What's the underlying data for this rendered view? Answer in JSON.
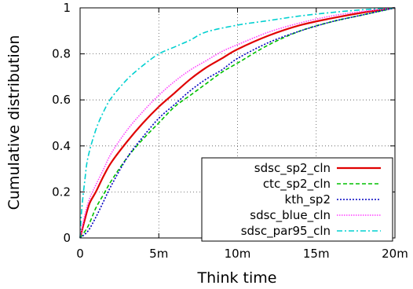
{
  "chart_data": {
    "type": "line",
    "title": "",
    "xlabel": "Think time",
    "ylabel": "Cumulative distribution",
    "xlim": [
      0,
      20
    ],
    "ylim": [
      0,
      1
    ],
    "x_ticks": [
      {
        "value": 0,
        "label": "0"
      },
      {
        "value": 5,
        "label": "5m"
      },
      {
        "value": 10,
        "label": "10m"
      },
      {
        "value": 15,
        "label": "15m"
      },
      {
        "value": 20,
        "label": "20m"
      }
    ],
    "y_ticks": [
      {
        "value": 0,
        "label": "0"
      },
      {
        "value": 0.2,
        "label": "0.2"
      },
      {
        "value": 0.4,
        "label": "0.4"
      },
      {
        "value": 0.6,
        "label": "0.6"
      },
      {
        "value": 0.8,
        "label": "0.8"
      },
      {
        "value": 1,
        "label": "1"
      }
    ],
    "grid": true,
    "legend_position": "bottom-right",
    "series": [
      {
        "name": "sdsc_sp2_cln",
        "color": "#e00000",
        "dash": "solid",
        "x": [
          0,
          0.3,
          0.6,
          1,
          1.5,
          2,
          3,
          4,
          5,
          6,
          7,
          8,
          9,
          10,
          12,
          14,
          16,
          18,
          20
        ],
        "y": [
          0,
          0.08,
          0.15,
          0.2,
          0.27,
          0.33,
          0.42,
          0.5,
          0.57,
          0.63,
          0.69,
          0.74,
          0.78,
          0.82,
          0.88,
          0.925,
          0.955,
          0.98,
          1.0
        ]
      },
      {
        "name": "ctc_sp2_cln",
        "color": "#00c000",
        "dash": "5 3",
        "x": [
          0,
          0.5,
          1,
          1.5,
          2,
          3,
          4,
          5,
          6,
          7,
          8,
          9,
          10,
          12,
          14,
          16,
          18,
          20
        ],
        "y": [
          0,
          0.05,
          0.13,
          0.19,
          0.25,
          0.35,
          0.43,
          0.5,
          0.57,
          0.62,
          0.67,
          0.72,
          0.76,
          0.84,
          0.9,
          0.94,
          0.97,
          1.0
        ]
      },
      {
        "name": "kth_sp2",
        "color": "#0000c0",
        "dash": "2 2",
        "x": [
          0,
          0.5,
          1,
          1.5,
          2,
          3,
          4,
          5,
          6,
          7,
          8,
          9,
          10,
          12,
          14,
          16,
          18,
          20
        ],
        "y": [
          0,
          0.03,
          0.09,
          0.16,
          0.23,
          0.35,
          0.44,
          0.52,
          0.58,
          0.64,
          0.69,
          0.73,
          0.78,
          0.85,
          0.9,
          0.94,
          0.97,
          1.0
        ]
      },
      {
        "name": "sdsc_blue_cln",
        "color": "#ff40ff",
        "dash": "1.5 1.5",
        "x": [
          0,
          0.3,
          0.6,
          1,
          1.5,
          2,
          3,
          4,
          5,
          6,
          7,
          8,
          9,
          10,
          12,
          14,
          16,
          18,
          20
        ],
        "y": [
          0,
          0.1,
          0.17,
          0.23,
          0.3,
          0.37,
          0.47,
          0.55,
          0.62,
          0.68,
          0.73,
          0.77,
          0.81,
          0.84,
          0.895,
          0.935,
          0.965,
          0.985,
          1.0
        ]
      },
      {
        "name": "sdsc_par95_cln",
        "color": "#00d0d0",
        "dash": "7 3 2 3",
        "x": [
          0,
          0.1,
          0.3,
          0.5,
          1,
          1.5,
          2,
          3,
          4,
          5,
          6,
          7,
          8,
          10,
          12,
          14,
          16,
          18,
          20
        ],
        "y": [
          0,
          0.12,
          0.25,
          0.35,
          0.47,
          0.55,
          0.61,
          0.69,
          0.75,
          0.8,
          0.83,
          0.86,
          0.895,
          0.925,
          0.945,
          0.965,
          0.98,
          0.992,
          1.0
        ]
      }
    ]
  }
}
